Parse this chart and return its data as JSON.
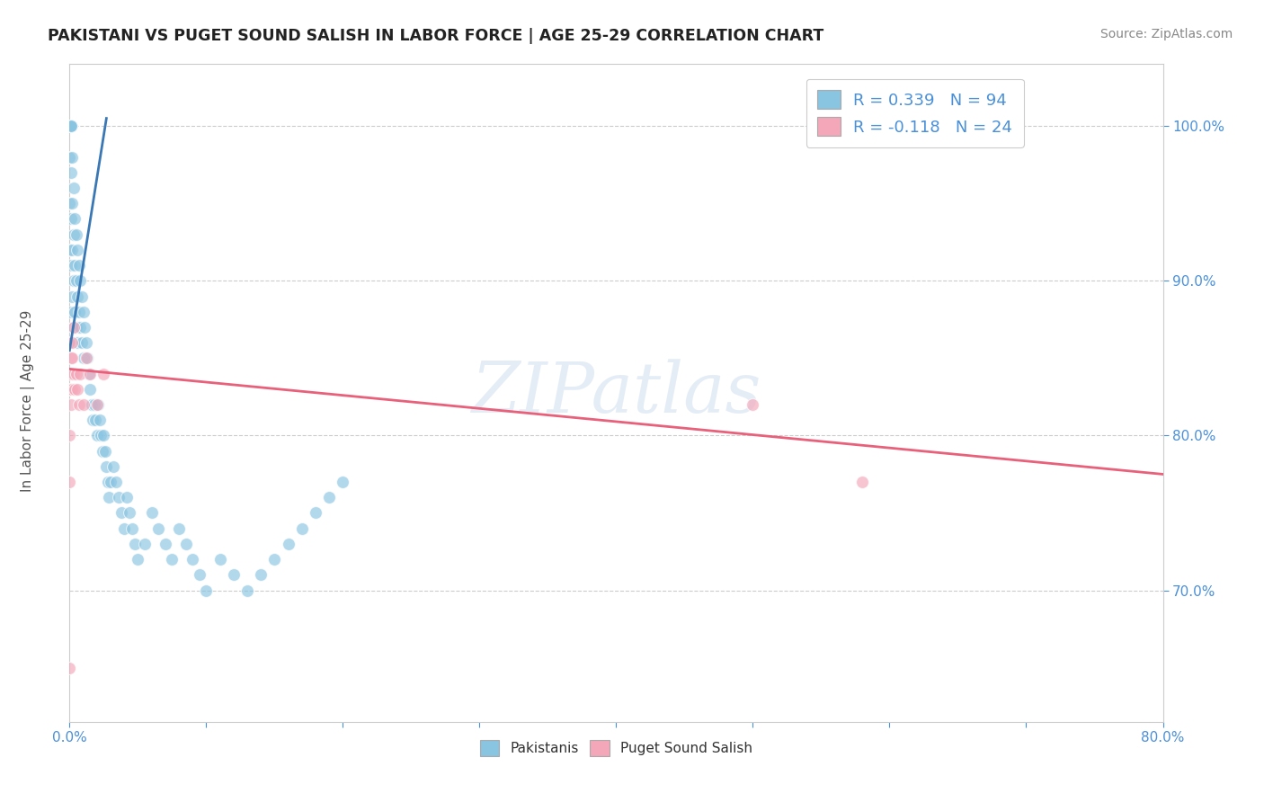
{
  "title": "PAKISTANI VS PUGET SOUND SALISH IN LABOR FORCE | AGE 25-29 CORRELATION CHART",
  "source_text": "Source: ZipAtlas.com",
  "ylabel": "In Labor Force | Age 25-29",
  "ytick_vals": [
    0.7,
    0.8,
    0.9,
    1.0
  ],
  "xlim": [
    0.0,
    0.8
  ],
  "ylim": [
    0.615,
    1.04
  ],
  "blue_color": "#89c4e1",
  "pink_color": "#f4a7b9",
  "trend_blue": "#3a78b5",
  "trend_pink": "#e8607a",
  "watermark": "ZIPatlas",
  "blue_scatter_x": [
    0.0,
    0.0,
    0.0,
    0.0,
    0.0,
    0.0,
    0.0,
    0.0,
    0.0,
    0.0,
    0.001,
    0.001,
    0.001,
    0.001,
    0.001,
    0.001,
    0.001,
    0.002,
    0.002,
    0.002,
    0.002,
    0.002,
    0.003,
    0.003,
    0.003,
    0.003,
    0.004,
    0.004,
    0.004,
    0.005,
    0.005,
    0.005,
    0.006,
    0.006,
    0.006,
    0.007,
    0.007,
    0.008,
    0.008,
    0.009,
    0.009,
    0.01,
    0.01,
    0.011,
    0.012,
    0.013,
    0.014,
    0.015,
    0.016,
    0.017,
    0.018,
    0.019,
    0.02,
    0.021,
    0.022,
    0.023,
    0.024,
    0.025,
    0.026,
    0.027,
    0.028,
    0.029,
    0.03,
    0.032,
    0.034,
    0.036,
    0.038,
    0.04,
    0.042,
    0.044,
    0.046,
    0.048,
    0.05,
    0.055,
    0.06,
    0.065,
    0.07,
    0.075,
    0.08,
    0.085,
    0.09,
    0.095,
    0.1,
    0.11,
    0.12,
    0.13,
    0.14,
    0.15,
    0.16,
    0.17,
    0.18,
    0.19,
    0.2
  ],
  "blue_scatter_y": [
    1.0,
    1.0,
    1.0,
    1.0,
    1.0,
    1.0,
    1.0,
    0.98,
    0.95,
    0.92,
    1.0,
    1.0,
    1.0,
    0.97,
    0.94,
    0.91,
    0.88,
    0.98,
    0.95,
    0.92,
    0.89,
    0.86,
    0.96,
    0.93,
    0.9,
    0.87,
    0.94,
    0.91,
    0.88,
    0.93,
    0.9,
    0.87,
    0.92,
    0.89,
    0.86,
    0.91,
    0.88,
    0.9,
    0.87,
    0.89,
    0.86,
    0.88,
    0.85,
    0.87,
    0.86,
    0.85,
    0.84,
    0.83,
    0.82,
    0.81,
    0.82,
    0.81,
    0.8,
    0.82,
    0.81,
    0.8,
    0.79,
    0.8,
    0.79,
    0.78,
    0.77,
    0.76,
    0.77,
    0.78,
    0.77,
    0.76,
    0.75,
    0.74,
    0.76,
    0.75,
    0.74,
    0.73,
    0.72,
    0.73,
    0.75,
    0.74,
    0.73,
    0.72,
    0.74,
    0.73,
    0.72,
    0.71,
    0.7,
    0.72,
    0.71,
    0.7,
    0.71,
    0.72,
    0.73,
    0.74,
    0.75,
    0.76,
    0.77
  ],
  "pink_scatter_x": [
    0.0,
    0.0,
    0.0,
    0.0,
    0.0,
    0.001,
    0.001,
    0.001,
    0.002,
    0.002,
    0.002,
    0.003,
    0.003,
    0.004,
    0.005,
    0.006,
    0.007,
    0.008,
    0.01,
    0.012,
    0.015,
    0.02,
    0.025,
    0.5,
    0.58
  ],
  "pink_scatter_y": [
    0.86,
    0.83,
    0.8,
    0.77,
    0.65,
    0.85,
    0.84,
    0.82,
    0.83,
    0.86,
    0.85,
    0.84,
    0.87,
    0.83,
    0.84,
    0.83,
    0.82,
    0.84,
    0.82,
    0.85,
    0.84,
    0.82,
    0.84,
    0.82,
    0.77
  ],
  "blue_trend_x": [
    0.0,
    0.027
  ],
  "blue_trend_y": [
    0.855,
    1.005
  ],
  "pink_trend_x": [
    0.0,
    0.8
  ],
  "pink_trend_y": [
    0.843,
    0.775
  ]
}
